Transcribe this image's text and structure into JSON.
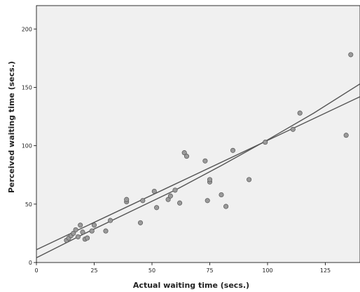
{
  "chart_data": {
    "type": "scatter",
    "xlabel": "Actual waiting time (secs.)",
    "ylabel": "Perceived waiting time (secs.)",
    "xlim": [
      0,
      140
    ],
    "ylim": [
      0,
      220
    ],
    "xticks": [
      0,
      25,
      50,
      75,
      100,
      125
    ],
    "yticks": [
      0,
      50,
      100,
      150,
      200
    ],
    "grid": false,
    "colors": {
      "plot_bg": "#f0f0f0",
      "marker": "#9a9a9a",
      "marker_edge": "#555555",
      "line": "#555555"
    },
    "series": [
      {
        "points": [
          [
            13,
            19
          ],
          [
            14,
            21
          ],
          [
            15,
            23
          ],
          [
            16,
            25
          ],
          [
            17,
            28
          ],
          [
            18,
            22
          ],
          [
            19,
            32
          ],
          [
            20,
            26
          ],
          [
            21,
            20
          ],
          [
            22,
            21
          ],
          [
            24,
            27
          ],
          [
            25,
            32
          ],
          [
            30,
            27
          ],
          [
            32,
            36
          ],
          [
            39,
            52
          ],
          [
            39,
            54
          ],
          [
            45,
            34
          ],
          [
            46,
            53
          ],
          [
            51,
            61
          ],
          [
            52,
            47
          ],
          [
            57,
            54
          ],
          [
            58,
            57
          ],
          [
            60,
            62
          ],
          [
            62,
            51
          ],
          [
            64,
            94
          ],
          [
            65,
            91
          ],
          [
            73,
            87
          ],
          [
            74,
            53
          ],
          [
            75,
            69
          ],
          [
            75,
            71
          ],
          [
            80,
            58
          ],
          [
            82,
            48
          ],
          [
            85,
            96
          ],
          [
            92,
            71
          ],
          [
            99,
            103
          ],
          [
            111,
            114
          ],
          [
            114,
            128
          ],
          [
            134,
            109
          ],
          [
            136,
            178
          ]
        ]
      }
    ],
    "fit_lines": [
      {
        "kind": "linear",
        "x": [
          0,
          140
        ],
        "y": [
          11,
          142
        ]
      },
      {
        "kind": "quadratic",
        "x": [
          0,
          20,
          40,
          60,
          80,
          100,
          120,
          140
        ],
        "y": [
          4,
          24,
          43,
          62,
          83,
          105,
          128,
          153
        ]
      }
    ]
  }
}
